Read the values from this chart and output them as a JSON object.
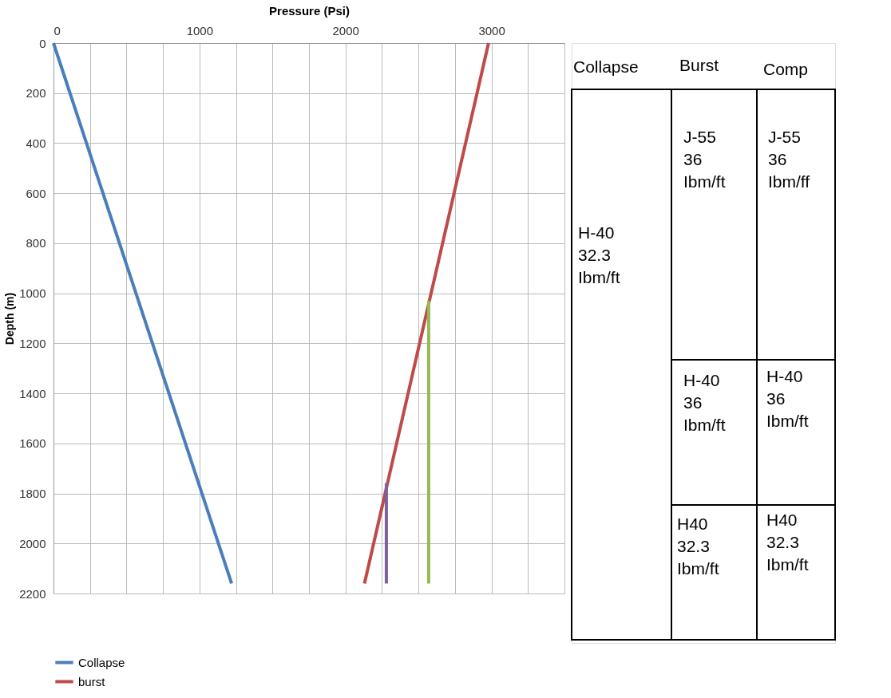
{
  "chart_data": [
    {
      "type": "line",
      "xlabel": "Pressure (Psi)",
      "ylabel": "Depth (m)",
      "xlim": [
        0,
        3500
      ],
      "xticks": [
        0,
        {
          "value": 250,
          "label": null
        },
        {
          "value": 500,
          "label": null
        },
        {
          "value": 750,
          "label": null
        },
        1000,
        {
          "value": 1250,
          "label": null
        },
        {
          "value": 1500,
          "label": null
        },
        {
          "value": 1750,
          "label": null
        },
        2000,
        {
          "value": 2250,
          "label": null
        },
        {
          "value": 2500,
          "label": null
        },
        {
          "value": 2750,
          "label": null
        },
        3000,
        {
          "value": 3250,
          "label": null
        },
        {
          "value": 3500,
          "label": null
        }
      ],
      "ylim": [
        2200,
        0
      ],
      "yticks": [
        0,
        200,
        400,
        600,
        800,
        1000,
        1200,
        1400,
        1600,
        1800,
        2000,
        2200
      ],
      "grid": true,
      "legend": "bottom",
      "line_style": "solid",
      "marker": "none",
      "series": [
        {
          "name": "Collapse",
          "color": "#4a7ebb",
          "x": [
            0,
            1220
          ],
          "values": [
            0,
            2160
          ]
        },
        {
          "name": "burst",
          "color": "#be4b48",
          "x": [
            2980,
            2130
          ],
          "values": [
            0,
            2160
          ]
        },
        {
          "color": "#98b954",
          "x": [
            2570,
            2570
          ],
          "values": [
            1030,
            2160
          ]
        },
        {
          "color": "#7d60a0",
          "x": [
            2280,
            2280
          ],
          "values": [
            1760,
            2160
          ]
        }
      ]
    },
    {
      "type": "other",
      "annotations": [
        "Collapse",
        "Burst",
        "Comp",
        "H-40\n32.3\n\nIbm/ft",
        "J-55\n\n36\n\nIbm/ft",
        "H-40\n36\nIbm/ft",
        "H40\n32.3\nIbm/ft",
        "J-55\n\n\n36\n\n\nIbm/ff",
        "H-40\n36\nIbm/ft",
        "H40\n32.3\nIbm/ft"
      ]
    }
  ]
}
